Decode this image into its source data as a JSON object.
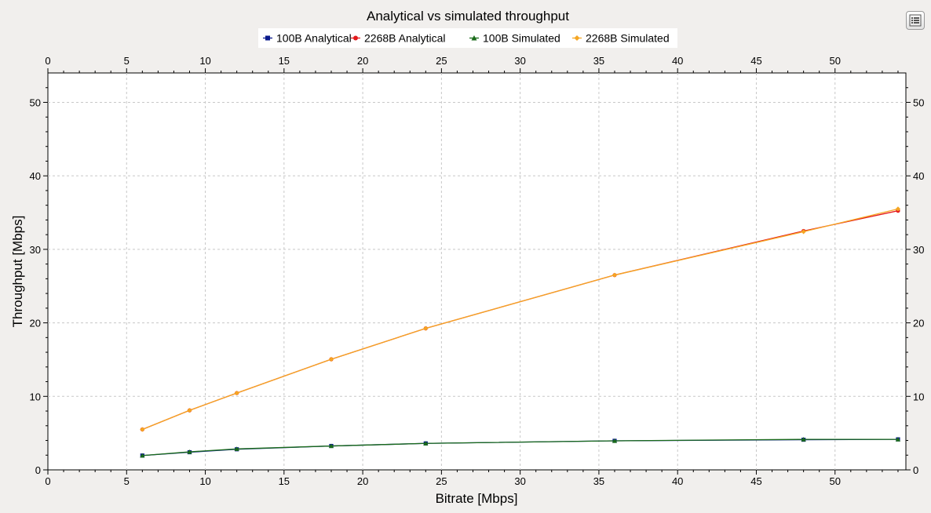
{
  "chart_data": {
    "type": "line",
    "title": "Analytical vs simulated throughput",
    "xlabel": "Bitrate [Mbps]",
    "ylabel": "Throughput [Mbps]",
    "xlim": [
      0,
      54.5
    ],
    "ylim": [
      0,
      54
    ],
    "x_ticks": [
      "0",
      "5",
      "10",
      "15",
      "20",
      "25",
      "30",
      "35",
      "40",
      "45",
      "50"
    ],
    "y_ticks": [
      "0",
      "10",
      "20",
      "30",
      "40",
      "50"
    ],
    "grid": true,
    "legend_position": "top",
    "x": [
      6,
      9,
      12,
      18,
      24,
      36,
      48,
      54
    ],
    "series": [
      {
        "name": "100B Analytical",
        "color": "#0a1a8c",
        "marker": "square",
        "values": [
          1.95,
          2.4,
          2.8,
          3.25,
          3.6,
          3.95,
          4.1,
          4.15
        ]
      },
      {
        "name": "2268B Analytical",
        "color": "#e41a1c",
        "marker": "circle",
        "values": [
          5.5,
          8.1,
          10.45,
          15.05,
          19.25,
          26.5,
          32.5,
          35.25
        ]
      },
      {
        "name": "100B Simulated",
        "color": "#1a6b1a",
        "marker": "triangle",
        "values": [
          1.95,
          2.45,
          2.85,
          3.25,
          3.6,
          3.95,
          4.15,
          4.15
        ]
      },
      {
        "name": "2268B Simulated",
        "color": "#f5a623",
        "marker": "diamond",
        "values": [
          5.5,
          8.1,
          10.45,
          15.05,
          19.25,
          26.5,
          32.4,
          35.5
        ]
      }
    ]
  },
  "toolbar": {
    "menu_icon": "list-icon"
  }
}
